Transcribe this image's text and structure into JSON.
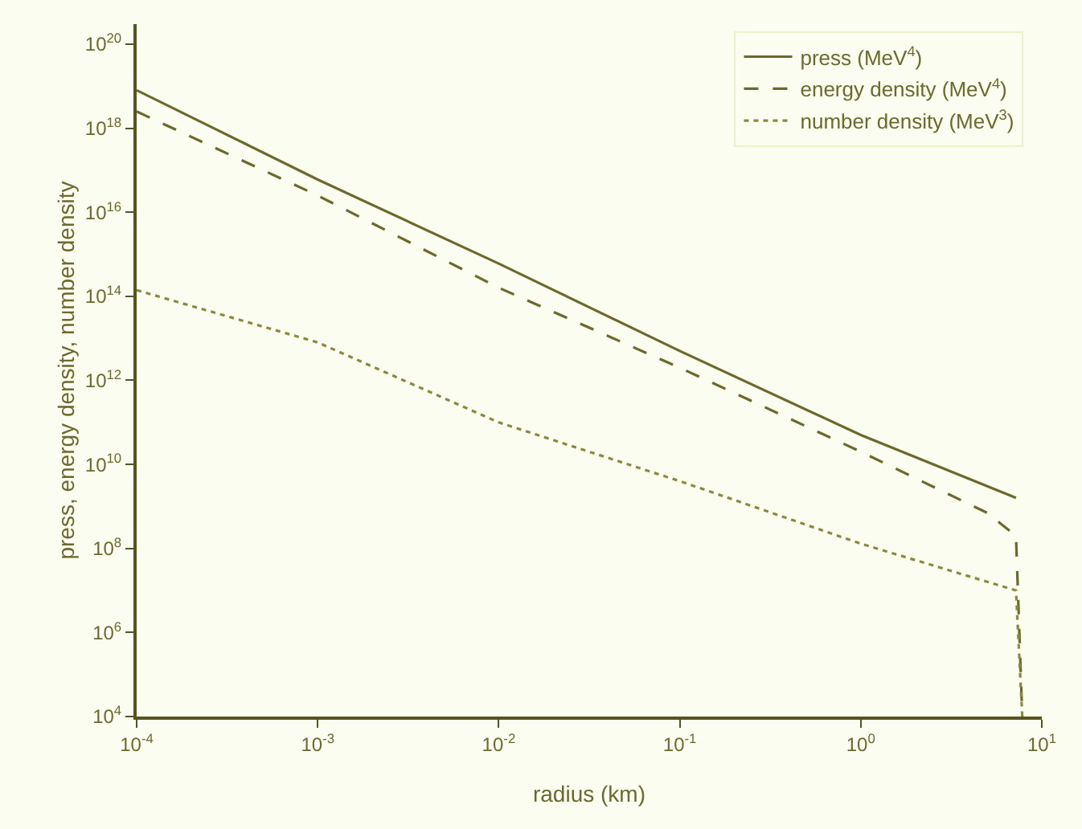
{
  "chart_data": {
    "type": "line",
    "xlabel": "radius (km)",
    "ylabel": "press, energy density, number density",
    "log": "xy",
    "grid": false,
    "legend": "top right",
    "xlim": [
      0.0001,
      10
    ],
    "ylim": [
      10000,
      3e+20
    ],
    "xticks": [
      {
        "value": 0.0001,
        "label": "10$^{-4}$"
      },
      {
        "value": 0.001,
        "label": "10$^{-3}$"
      },
      {
        "value": 0.01,
        "label": "10$^{-2}$"
      },
      {
        "value": 0.1,
        "label": "10$^{-1}$"
      },
      {
        "value": 1,
        "label": "10$^{0}$"
      },
      {
        "value": 10,
        "label": "10$^{1}$"
      }
    ],
    "yticks": [
      {
        "value": 10000,
        "label": "10$^{4}$"
      },
      {
        "value": 1000000,
        "label": "10$^{6}$"
      },
      {
        "value": 100000000,
        "label": "10$^{8}$"
      },
      {
        "value": 10000000000,
        "label": "10$^{10}$"
      },
      {
        "value": 1000000000000,
        "label": "10$^{12}$"
      },
      {
        "value": 100000000000000,
        "label": "10$^{14}$"
      },
      {
        "value": 1e+16,
        "label": "10$^{16}$"
      },
      {
        "value": 1e+18,
        "label": "10$^{18}$"
      },
      {
        "value": 1e+20,
        "label": "10$^{20}$"
      }
    ],
    "series": [
      {
        "name": "press (MeV$^{4}$)",
        "color": "#6b6a2c",
        "line_style": "solid",
        "x": [
          0.0001,
          0.001,
          0.01,
          0.1,
          1,
          7.2
        ],
        "values": [
          8e+18,
          6e+16,
          600000000000000.0,
          5000000000000.0,
          50000000000.0,
          1600000000.0
        ]
      },
      {
        "name": "energy density (MeV$^{4}$)",
        "color": "#6b6a2c",
        "line_style": "dashed",
        "x": [
          0.0001,
          0.001,
          0.01,
          0.1,
          1,
          5,
          7.2,
          7.8
        ],
        "values": [
          2.5e+18,
          2.5e+16,
          160000000000000.0,
          2000000000000.0,
          20000000000.0,
          700000000.0,
          200000000.0,
          10000
        ]
      },
      {
        "name": "number density (MeV$^{3}$)",
        "color": "#8a8a3c",
        "line_style": "dotted",
        "x": [
          0.0001,
          0.001,
          0.01,
          0.1,
          1,
          7.2,
          7.8
        ],
        "values": [
          140000000000000.0,
          8000000000000.0,
          100000000000.0,
          4000000000.0,
          130000000.0,
          10000000.0,
          10000
        ]
      }
    ]
  }
}
